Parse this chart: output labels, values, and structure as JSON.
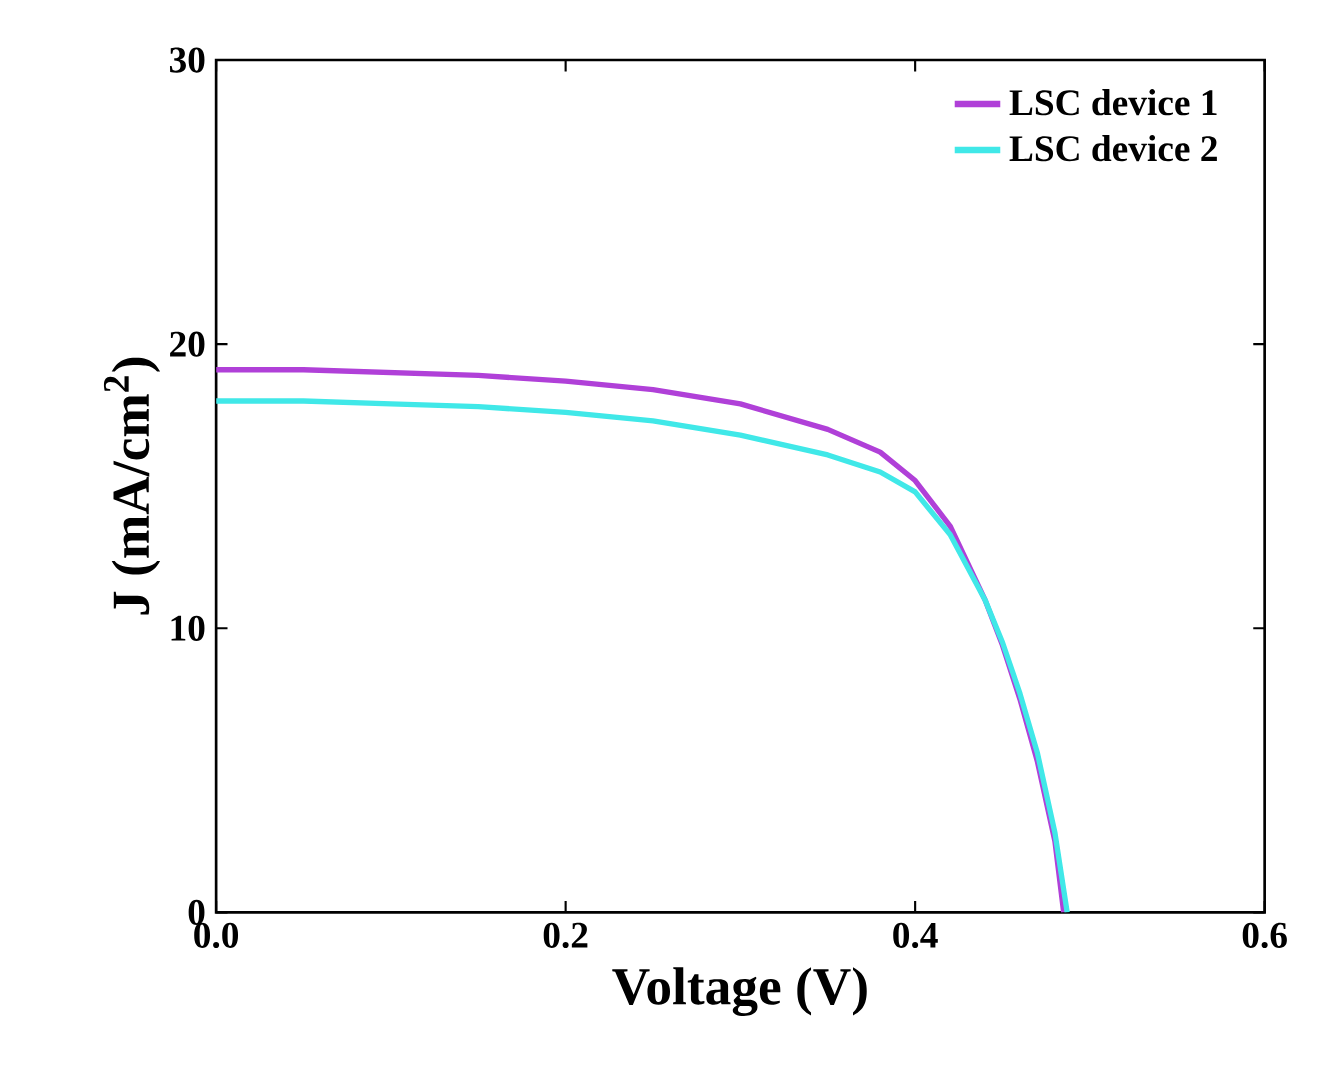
{
  "chart_data": {
    "type": "line",
    "xlabel": "Voltage (V)",
    "ylabel": "J (mA/cm$^{2}$)",
    "xlim": [
      0,
      0.6
    ],
    "ylim": [
      0,
      30
    ],
    "xticks": [
      {
        "value": 0,
        "label": "0.0"
      },
      {
        "value": 0.2,
        "label": "0.2"
      },
      {
        "value": 0.4,
        "label": "0.4"
      },
      {
        "value": 0.6,
        "label": "0.6"
      }
    ],
    "yticks": [
      0,
      10,
      20,
      30
    ],
    "legend": "top right",
    "marker": "none",
    "line_style": "solid",
    "series": [
      {
        "name": "LSC device 1",
        "color": "#b040d8",
        "x": [
          0,
          0.05,
          0.1,
          0.15,
          0.2,
          0.25,
          0.3,
          0.35,
          0.38,
          0.4,
          0.42,
          0.44,
          0.45,
          0.46,
          0.47,
          0.48,
          0.485
        ],
        "values": [
          19.1,
          19.1,
          19.0,
          18.9,
          18.7,
          18.4,
          17.9,
          17.0,
          16.2,
          15.2,
          13.6,
          11.0,
          9.4,
          7.5,
          5.3,
          2.5,
          0
        ]
      },
      {
        "name": "LSC device 2",
        "color": "#40e8e8",
        "x": [
          0,
          0.05,
          0.1,
          0.15,
          0.2,
          0.25,
          0.3,
          0.35,
          0.38,
          0.4,
          0.42,
          0.44,
          0.45,
          0.46,
          0.47,
          0.48,
          0.487
        ],
        "values": [
          18.0,
          18.0,
          17.9,
          17.8,
          17.6,
          17.3,
          16.8,
          16.1,
          15.5,
          14.8,
          13.3,
          11.0,
          9.5,
          7.7,
          5.6,
          2.8,
          0
        ]
      }
    ]
  }
}
